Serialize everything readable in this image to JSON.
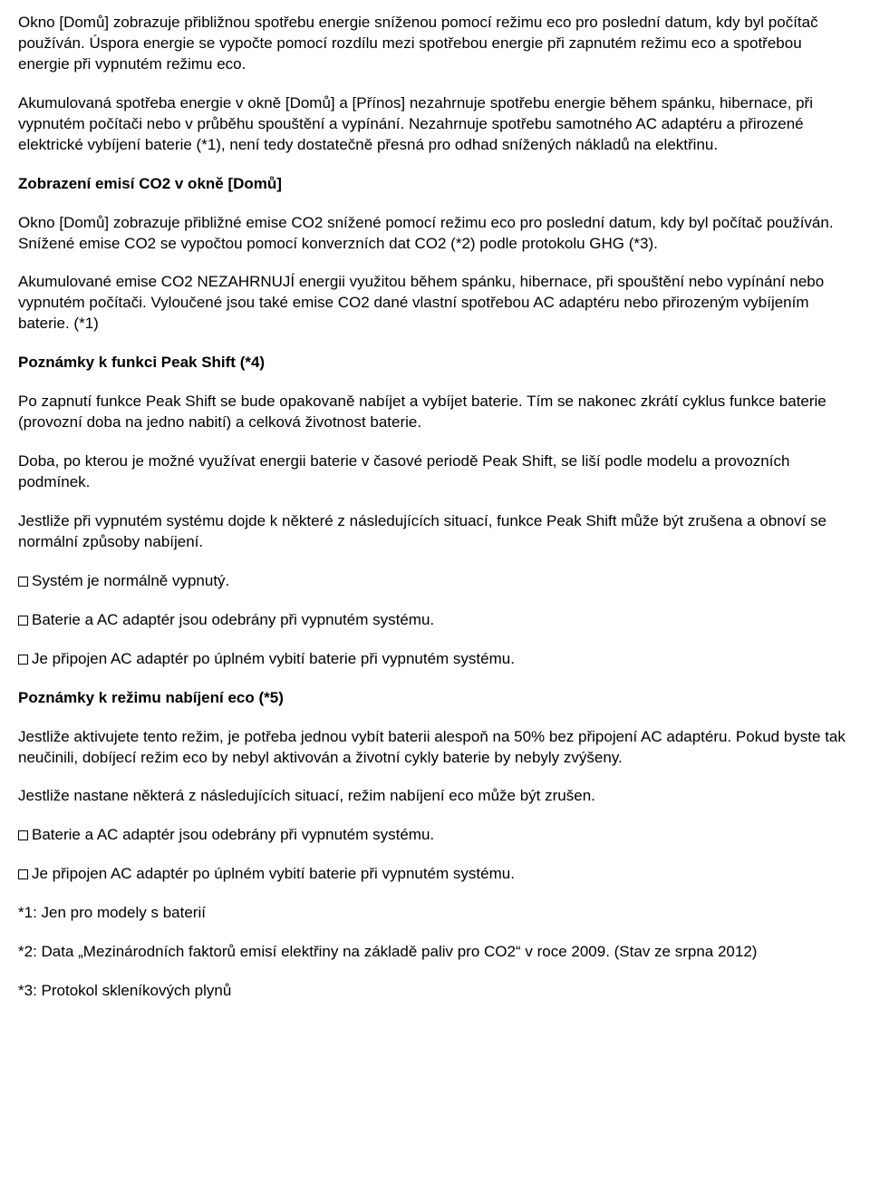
{
  "p1": "Okno [Domů] zobrazuje přibližnou spotřebu energie sníženou pomocí režimu eco pro poslední datum, kdy byl počítač používán. Úspora energie se vypočte pomocí rozdílu mezi spotřebou energie při zapnutém režimu eco a spotřebou energie při vypnutém režimu eco.",
  "p2": "Akumulovaná spotřeba energie v okně [Domů] a [Přínos] nezahrnuje spotřebu energie během spánku, hibernace, při vypnutém počítači nebo v průběhu spouštění a vypínání. Nezahrnuje spotřebu samotného AC adaptéru a přirozené elektrické vybíjení baterie (*1), není tedy dostatečně přesná pro odhad snížených nákladů na elektřinu.",
  "h1": "Zobrazení emisí CO2 v okně [Domů]",
  "p3": "Okno [Domů] zobrazuje přibližné emise CO2 snížené pomocí režimu eco pro poslední datum, kdy byl počítač používán. Snížené emise CO2 se vypočtou pomocí konverzních dat CO2 (*2) podle protokolu GHG (*3).",
  "p4": "Akumulované emise CO2 NEZAHRNUJÍ energii využitou během spánku, hibernace, při spouštění nebo vypínání nebo vypnutém počítači. Vyloučené jsou také emise CO2 dané vlastní spotřebou AC adaptéru nebo přirozeným vybíjením baterie. (*1)",
  "h2": "Poznámky k funkci Peak Shift (*4)",
  "p5": "Po zapnutí funkce Peak Shift se bude opakovaně nabíjet a vybíjet baterie. Tím se nakonec zkrátí cyklus funkce baterie (provozní doba na jedno nabití) a celková životnost baterie.",
  "p6": "Doba, po kterou je možné využívat energii baterie v časové periodě Peak Shift, se liší podle modelu a provozních podmínek.",
  "p7": "Jestliže při vypnutém systému dojde k některé z následujících situací, funkce Peak Shift může být zrušena a obnoví se normální způsoby nabíjení.",
  "li1": "Systém je normálně vypnutý.",
  "li2": "Baterie a AC adaptér jsou odebrány při vypnutém systému.",
  "li3": "Je připojen AC adaptér po úplném vybití baterie při vypnutém systému.",
  "h3": "Poznámky k režimu nabíjení eco (*5)",
  "p8": "Jestliže aktivujete tento režim, je potřeba jednou vybít baterii alespoň na 50% bez připojení AC adaptéru. Pokud byste tak neučinili, dobíjecí režim eco by nebyl aktivován a životní cykly baterie by nebyly zvýšeny.",
  "p9": "Jestliže nastane některá z následujících situací, režim nabíjení eco může být zrušen.",
  "li4": "Baterie a AC adaptér jsou odebrány při vypnutém systému.",
  "li5": "Je připojen AC adaptér po úplném vybití baterie při vypnutém systému.",
  "n1": "*1: Jen pro modely s baterií",
  "n2": "*2: Data „Mezinárodních faktorů emisí elektřiny na základě paliv pro CO2“ v roce 2009. (Stav ze srpna 2012)",
  "n3": "*3: Protokol skleníkových plynů"
}
